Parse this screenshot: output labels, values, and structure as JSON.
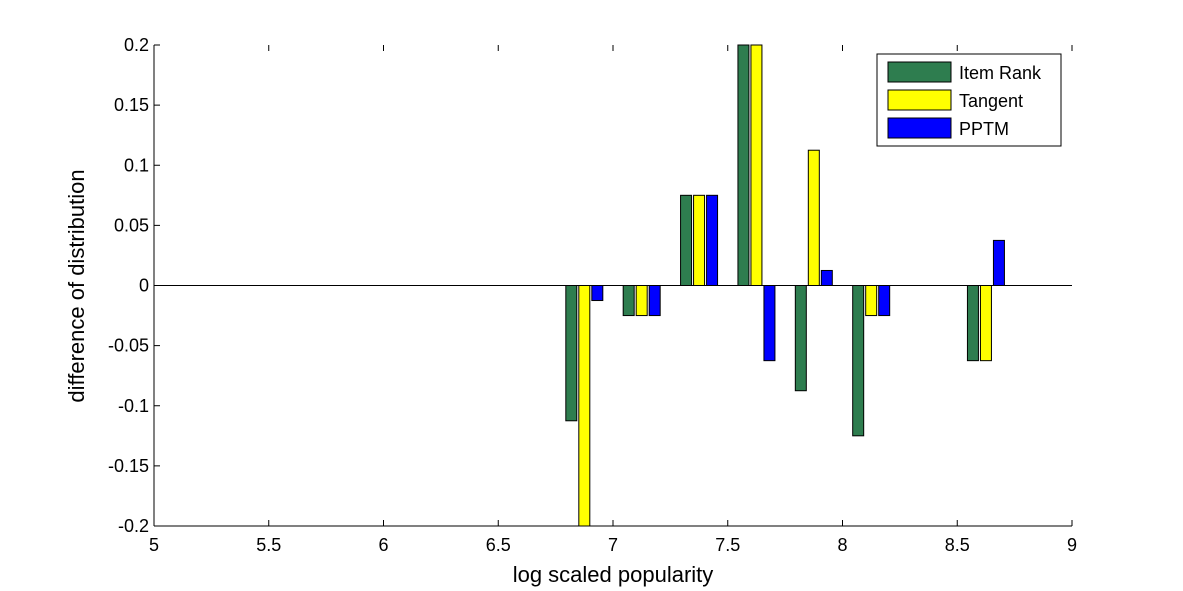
{
  "chart_data": {
    "type": "bar",
    "xlabel": "log scaled popularity",
    "ylabel": "difference of distribution",
    "xlim": [
      5,
      9
    ],
    "ylim": [
      -0.2,
      0.2
    ],
    "xticks": [
      "5",
      "5.5",
      "6",
      "6.5",
      "7",
      "7.5",
      "8",
      "8.5",
      "9"
    ],
    "xtick_values": [
      5,
      5.5,
      6,
      6.5,
      7,
      7.5,
      8,
      8.5,
      9
    ],
    "yticks": [
      "-0.2",
      "-0.15",
      "-0.1",
      "-0.05",
      "0",
      "0.05",
      "0.1",
      "0.15",
      "0.2"
    ],
    "ytick_values": [
      -0.2,
      -0.15,
      -0.1,
      -0.05,
      0,
      0.05,
      0.1,
      0.15,
      0.2
    ],
    "x": [
      6.875,
      7.125,
      7.375,
      7.625,
      7.875,
      8.125,
      8.625
    ],
    "series": [
      {
        "name": "Item Rank",
        "color": "#2e7d4f",
        "values": [
          -0.1125,
          -0.025,
          0.075,
          0.2,
          -0.0875,
          -0.125,
          -0.0625
        ]
      },
      {
        "name": "Tangent",
        "color": "#ffff00",
        "values": [
          -0.2,
          -0.025,
          0.075,
          0.2,
          0.1125,
          -0.025,
          -0.0625
        ]
      },
      {
        "name": "PPTM",
        "color": "#0000ff",
        "values": [
          -0.0125,
          -0.025,
          0.075,
          -0.0625,
          0.0125,
          -0.025,
          0.0375
        ]
      }
    ],
    "legend_position": "top-right",
    "grid": false
  }
}
